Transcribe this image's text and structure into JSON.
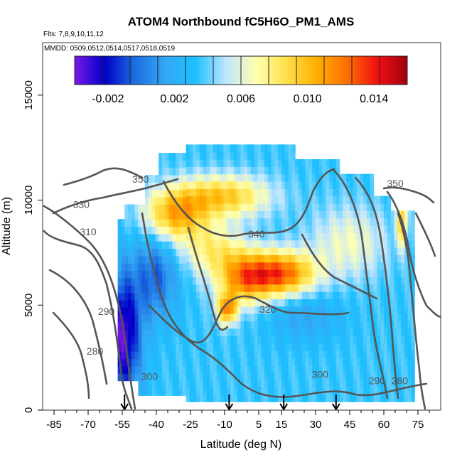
{
  "chart_data": {
    "type": "heatmap",
    "title": "ATOM4 Northbound fC5H6O_PM1_AMS",
    "annotations": [
      "Flts: 7,8,9,10,11,12",
      "MMDD: 0509,0512,0514,0517,0518,0519"
    ],
    "xlabel": "Latitude (deg N)",
    "ylabel": "Altitude (m)",
    "xlim": [
      -90,
      85
    ],
    "ylim": [
      0,
      17500
    ],
    "x_ticks": [
      -85,
      -70,
      -55,
      -40,
      -25,
      -10,
      5,
      15,
      30,
      45,
      60,
      75
    ],
    "y_ticks": [
      0,
      5000,
      10000,
      15000
    ],
    "colorbar": {
      "range": [
        -0.004,
        0.016
      ],
      "ticks": [
        -0.002,
        0.002,
        0.006,
        0.01,
        0.014
      ],
      "tick_labels": [
        "-0.002",
        "0.002",
        "0.006",
        "0.010",
        "0.014"
      ],
      "colors": [
        "#7a18e8",
        "#0000c8",
        "#1e6fe0",
        "#33a8f5",
        "#1fc0ff",
        "#bfe6ff",
        "#ffffb0",
        "#ffe14a",
        "#ffb000",
        "#ff7000",
        "#f01010",
        "#a00010"
      ]
    },
    "contour_labels": [
      {
        "text": "350",
        "x": -47,
        "y": 10900
      },
      {
        "text": "330",
        "x": -73,
        "y": 9700
      },
      {
        "text": "310",
        "x": -70,
        "y": 8400
      },
      {
        "text": "290",
        "x": -62,
        "y": 4600
      },
      {
        "text": "280",
        "x": -67,
        "y": 2700
      },
      {
        "text": "340",
        "x": 4,
        "y": 8300
      },
      {
        "text": "320",
        "x": 9,
        "y": 4700
      },
      {
        "text": "300",
        "x": -43,
        "y": 1500
      },
      {
        "text": "300",
        "x": 32,
        "y": 1600
      },
      {
        "text": "290",
        "x": 57,
        "y": 1300
      },
      {
        "text": "280",
        "x": 67,
        "y": 1300
      },
      {
        "text": "350",
        "x": 65,
        "y": 10700
      }
    ],
    "flight_arrows_latitude": [
      -54,
      -8,
      16,
      39
    ],
    "values_description_points": [
      {
        "lat": -35,
        "alt": 9200,
        "value": 0.012
      },
      {
        "lat": -15,
        "alt": 10100,
        "value": 0.011
      },
      {
        "lat": 15,
        "alt": 6500,
        "value": 0.015
      },
      {
        "lat": -8,
        "alt": 4800,
        "value": 0.013
      },
      {
        "lat": 68,
        "alt": 9000,
        "value": 0.011
      }
    ]
  }
}
